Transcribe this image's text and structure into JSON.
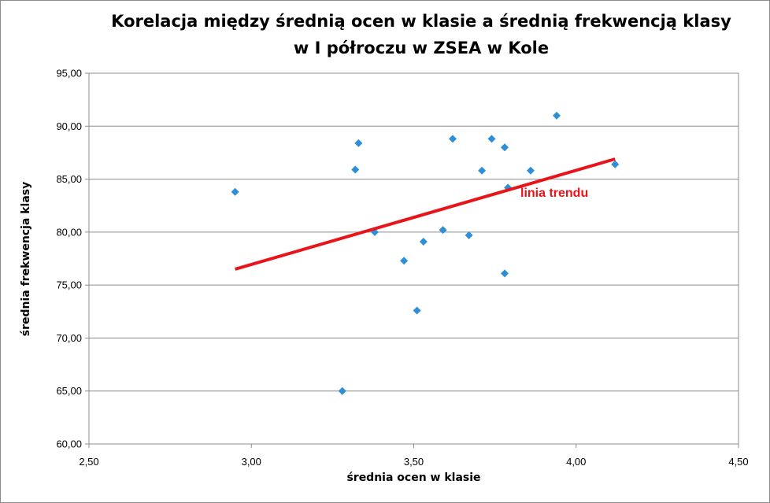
{
  "chart_data": {
    "type": "scatter",
    "title": "Korelacja między średnią ocen w klasie a średnią frekwencją klasy",
    "subtitle": "w I półroczu w ZSEA w Kole",
    "xlabel": "średnia ocen w klasie",
    "ylabel": "średnia frekwencja klasy",
    "xlim": [
      2.5,
      4.5
    ],
    "ylim": [
      60,
      95
    ],
    "xticks": [
      "2,50",
      "3,00",
      "3,50",
      "4,00",
      "4,50"
    ],
    "yticks": [
      "60,00",
      "65,00",
      "70,00",
      "75,00",
      "80,00",
      "85,00",
      "90,00",
      "95,00"
    ],
    "grid": "horizontal",
    "point_color": "#2e8fd9",
    "trend_color": "#e8141a",
    "points": [
      {
        "x": 2.95,
        "y": 83.8
      },
      {
        "x": 3.28,
        "y": 65.0
      },
      {
        "x": 3.32,
        "y": 85.9
      },
      {
        "x": 3.33,
        "y": 88.4
      },
      {
        "x": 3.38,
        "y": 80.0
      },
      {
        "x": 3.47,
        "y": 77.3
      },
      {
        "x": 3.51,
        "y": 72.6
      },
      {
        "x": 3.53,
        "y": 79.1
      },
      {
        "x": 3.59,
        "y": 80.2
      },
      {
        "x": 3.62,
        "y": 88.8
      },
      {
        "x": 3.67,
        "y": 79.7
      },
      {
        "x": 3.71,
        "y": 85.8
      },
      {
        "x": 3.74,
        "y": 88.8
      },
      {
        "x": 3.78,
        "y": 88.0
      },
      {
        "x": 3.78,
        "y": 76.1
      },
      {
        "x": 3.79,
        "y": 84.2
      },
      {
        "x": 3.86,
        "y": 85.8
      },
      {
        "x": 3.94,
        "y": 91.0
      },
      {
        "x": 4.12,
        "y": 86.4
      }
    ],
    "trendline": {
      "x": [
        2.95,
        4.12
      ],
      "y": [
        76.5,
        86.9
      ]
    },
    "annotation": "linia trendu"
  }
}
